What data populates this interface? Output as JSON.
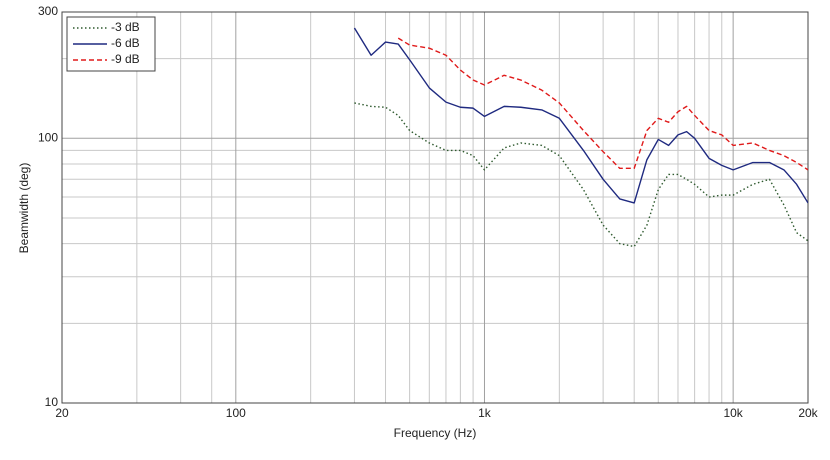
{
  "chart_data": {
    "type": "line",
    "xlabel": "Frequency (Hz)",
    "ylabel": "Beamwidth (deg)",
    "xscale": "log",
    "yscale": "log",
    "grid": true,
    "legend": "upper left",
    "xlim": [
      20,
      20000
    ],
    "ylim": [
      10,
      300
    ],
    "xticks": [
      20,
      100,
      {
        "value": 1000,
        "label": "1k"
      },
      {
        "value": 10000,
        "label": "10k"
      },
      {
        "value": 20000,
        "label": "20k"
      }
    ],
    "yticks": [
      10,
      100,
      300
    ],
    "xgrid": [
      40,
      60,
      80,
      200,
      300,
      400,
      500,
      600,
      700,
      800,
      900,
      2000,
      3000,
      4000,
      5000,
      6000,
      7000,
      8000,
      9000
    ],
    "ygrid": [
      20,
      30,
      40,
      50,
      60,
      70,
      80,
      90,
      200
    ],
    "x": [
      300,
      350,
      400,
      450,
      500,
      600,
      700,
      800,
      900,
      1000,
      1200,
      1400,
      1700,
      2000,
      2500,
      3000,
      3500,
      4000,
      4500,
      5000,
      5500,
      6000,
      6500,
      7000,
      8000,
      9000,
      10000,
      12000,
      14000,
      16000,
      18000,
      20000
    ],
    "series": [
      {
        "name": "-3 dB",
        "color": "#2f5a2f",
        "style": "dotted",
        "values": [
          136,
          132,
          131,
          122,
          107,
          96,
          90,
          90,
          86,
          76,
          92,
          96,
          94,
          86,
          64,
          47,
          40,
          39,
          47,
          64,
          73,
          73,
          70,
          67,
          60,
          61,
          61,
          67,
          70,
          56,
          44,
          41
        ]
      },
      {
        "name": "-6 dB",
        "color": "#1f2a80",
        "style": "solid",
        "values": [
          261,
          206,
          231,
          227,
          198,
          155,
          137,
          131,
          130,
          121,
          132,
          131,
          128,
          119,
          90,
          70,
          59,
          57,
          83,
          99,
          94,
          103,
          106,
          100,
          84,
          79,
          76,
          81,
          81,
          76,
          67,
          57
        ]
      },
      {
        "name": "-9 dB",
        "color": "#e01a1a",
        "style": "dashed",
        "values": [
          null,
          null,
          null,
          239,
          225,
          219,
          206,
          181,
          166,
          159,
          173,
          166,
          152,
          136,
          107,
          89,
          77,
          77,
          107,
          119,
          115,
          126,
          132,
          122,
          107,
          103,
          94,
          96,
          90,
          86,
          81,
          76
        ]
      }
    ]
  }
}
